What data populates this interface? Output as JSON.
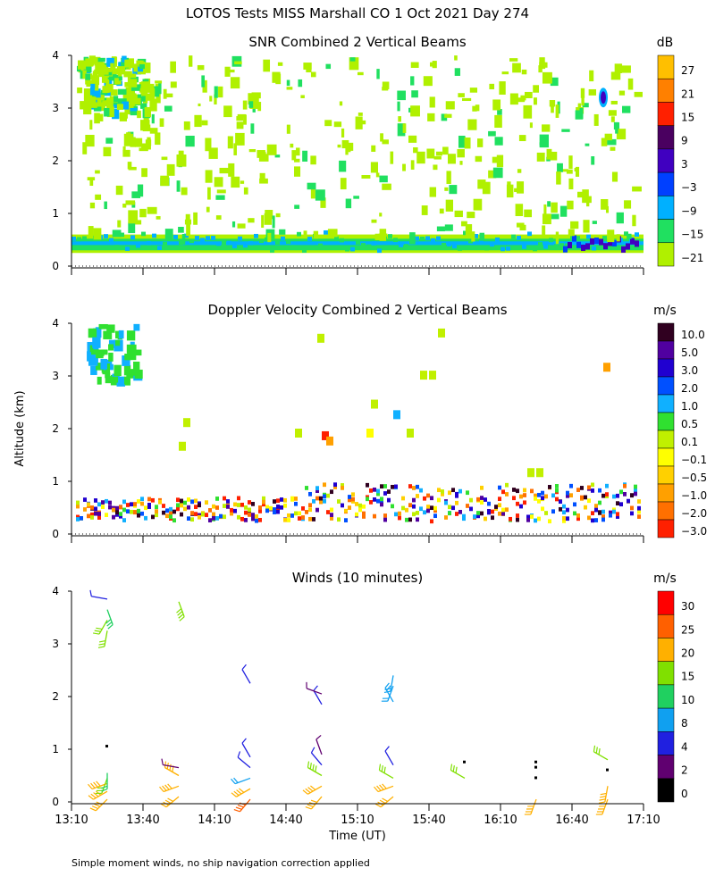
{
  "title": "LOTOS Tests MISS Marshall CO    1 Oct 2021 Day 274",
  "ylabel": "Altitude (km)",
  "xlabel": "Time (UT)",
  "footnote": "Simple moment winds, no ship navigation correction applied",
  "time_ticks": [
    "13:10",
    "13:40",
    "14:10",
    "14:40",
    "15:10",
    "15:40",
    "16:10",
    "16:40",
    "17:10"
  ],
  "alt_ticks": [
    "0",
    "1",
    "2",
    "3",
    "4"
  ],
  "panels": [
    {
      "title": "SNR Combined 2 Vertical Beams",
      "unit": "dB",
      "scale_labels": [
        "27",
        "21",
        "15",
        "9",
        "3",
        "−3",
        "−9",
        "−15",
        "−21"
      ],
      "scale_colors": [
        "#ffbf00",
        "#ff8000",
        "#ff2000",
        "#4a0060",
        "#4000c0",
        "#0040ff",
        "#00b0ff",
        "#20e060",
        "#b0f000"
      ]
    },
    {
      "title": "Doppler Velocity Combined 2 Vertical Beams",
      "unit": "m/s",
      "scale_labels": [
        "10.0",
        "5.0",
        "3.0",
        "2.0",
        "1.0",
        "0.5",
        "0.1",
        "−0.1",
        "−0.5",
        "−1.0",
        "−2.0",
        "−3.0"
      ],
      "scale_colors": [
        "#300020",
        "#5000a0",
        "#2000d0",
        "#0050ff",
        "#10b0ff",
        "#30e030",
        "#c0f000",
        "#ffff00",
        "#ffd000",
        "#ffa000",
        "#ff7000",
        "#ff2000"
      ]
    },
    {
      "title": "Winds (10 minutes)",
      "unit": "m/s",
      "scale_labels": [
        "30",
        "25",
        "20",
        "15",
        "10",
        "8",
        "4",
        "2",
        "0"
      ],
      "scale_colors": [
        "#ff0000",
        "#ff6000",
        "#ffb000",
        "#80e000",
        "#20d060",
        "#10a0f0",
        "#2020e0",
        "#600070",
        "#000000"
      ]
    }
  ],
  "chart_data": [
    {
      "type": "heatmap",
      "title": "SNR Combined 2 Vertical Beams",
      "xlabel": "Time (UT)",
      "ylabel": "Altitude (km)",
      "xlim": [
        "13:10",
        "17:10"
      ],
      "ylim": [
        0,
        4
      ],
      "colorbar_unit": "dB",
      "colorbar_levels": [
        -21,
        -15,
        -9,
        -3,
        3,
        9,
        15,
        21,
        27
      ],
      "features": [
        {
          "description": "strong layer near surface",
          "alt_km": [
            0.25,
            0.6
          ],
          "time": [
            "13:10",
            "17:10"
          ],
          "snr_db": [
            -15,
            -3
          ]
        },
        {
          "description": "enhanced SNR near surface late",
          "alt_km": [
            0.25,
            0.5
          ],
          "time": [
            "16:40",
            "17:05"
          ],
          "snr_db": 3
        },
        {
          "description": "isolated echo",
          "alt_km": 3.2,
          "time": "16:45",
          "snr_db": 3
        },
        {
          "description": "weak scattered echoes",
          "alt_km": [
            0.6,
            4.0
          ],
          "time": [
            "13:10",
            "17:10"
          ],
          "snr_db": -21
        }
      ]
    },
    {
      "type": "heatmap",
      "title": "Doppler Velocity Combined 2 Vertical Beams",
      "xlabel": "Time (UT)",
      "ylabel": "Altitude (km)",
      "xlim": [
        "13:10",
        "17:10"
      ],
      "ylim": [
        0,
        4
      ],
      "colorbar_unit": "m/s",
      "colorbar_levels": [
        -3.0,
        -2.0,
        -1.0,
        -0.5,
        -0.1,
        0.1,
        0.5,
        1.0,
        2.0,
        3.0,
        5.0,
        10.0
      ],
      "features": [
        {
          "description": "noisy mixed velocities near surface",
          "alt_km": [
            0.2,
            0.9
          ],
          "time": [
            "13:15",
            "17:05"
          ]
        },
        {
          "description": "upward 0.5-1.0 m/s region aloft",
          "alt_km": [
            2.9,
            4.0
          ],
          "time": [
            "13:20",
            "13:45"
          ]
        },
        {
          "description": "downward pocket",
          "alt_km": [
            1.7,
            2.0
          ],
          "time": [
            "14:53",
            "14:57"
          ],
          "velocity_ms": -3.0
        },
        {
          "description": "isolated downward echo",
          "alt_km": 3.2,
          "time": "16:45",
          "velocity_ms": -0.5
        }
      ]
    },
    {
      "type": "scatter",
      "title": "Winds (10 minutes)",
      "xlabel": "Time (UT)",
      "ylabel": "Altitude (km)",
      "xlim": [
        "13:10",
        "17:10"
      ],
      "ylim": [
        0,
        4
      ],
      "colorbar_unit": "m/s",
      "colorbar_levels": [
        0,
        2,
        4,
        8,
        10,
        15,
        20,
        25,
        30
      ],
      "barb_groups": [
        {
          "time": "13:25",
          "barbs": [
            {
              "alt": 0.05,
              "speed": 20,
              "dir": 225
            },
            {
              "alt": 0.2,
              "speed": 20,
              "dir": 240
            },
            {
              "alt": 0.35,
              "speed": 22,
              "dir": 250
            },
            {
              "alt": 0.45,
              "speed": 15,
              "dir": 200
            },
            {
              "alt": 0.55,
              "speed": 12,
              "dir": 180
            },
            {
              "alt": 1.05,
              "speed": 0,
              "dir": 270
            },
            {
              "alt": 3.25,
              "speed": 15,
              "dir": 190
            },
            {
              "alt": 3.45,
              "speed": 17,
              "dir": 210
            },
            {
              "alt": 3.65,
              "speed": 13,
              "dir": 160
            },
            {
              "alt": 3.85,
              "speed": 5,
              "dir": 280
            }
          ]
        },
        {
          "time": "13:55",
          "barbs": [
            {
              "alt": 0.1,
              "speed": 22,
              "dir": 230
            },
            {
              "alt": 0.3,
              "speed": 20,
              "dir": 250
            },
            {
              "alt": 0.5,
              "speed": 20,
              "dir": 300
            },
            {
              "alt": 0.65,
              "speed": 3,
              "dir": 280
            },
            {
              "alt": 3.8,
              "speed": 18,
              "dir": 160
            }
          ]
        },
        {
          "time": "14:25",
          "barbs": [
            {
              "alt": 0.05,
              "speed": 25,
              "dir": 220
            },
            {
              "alt": 0.25,
              "speed": 22,
              "dir": 240
            },
            {
              "alt": 0.45,
              "speed": 8,
              "dir": 250
            },
            {
              "alt": 0.65,
              "speed": 5,
              "dir": 310
            },
            {
              "alt": 0.85,
              "speed": 4,
              "dir": 330
            },
            {
              "alt": 2.25,
              "speed": 5,
              "dir": 330
            }
          ]
        },
        {
          "time": "14:55",
          "barbs": [
            {
              "alt": 0.1,
              "speed": 20,
              "dir": 220
            },
            {
              "alt": 0.3,
              "speed": 20,
              "dir": 240
            },
            {
              "alt": 0.5,
              "speed": 18,
              "dir": 300
            },
            {
              "alt": 0.7,
              "speed": 4,
              "dir": 320
            },
            {
              "alt": 0.9,
              "speed": 3,
              "dir": 340
            },
            {
              "alt": 1.85,
              "speed": 4,
              "dir": 330
            },
            {
              "alt": 2.05,
              "speed": 3,
              "dir": 290
            }
          ]
        },
        {
          "time": "15:25",
          "barbs": [
            {
              "alt": 0.1,
              "speed": 20,
              "dir": 230
            },
            {
              "alt": 0.3,
              "speed": 22,
              "dir": 250
            },
            {
              "alt": 0.45,
              "speed": 16,
              "dir": 300
            },
            {
              "alt": 0.7,
              "speed": 4,
              "dir": 330
            },
            {
              "alt": 1.9,
              "speed": 8,
              "dir": 330
            },
            {
              "alt": 2.2,
              "speed": 8,
              "dir": 200
            },
            {
              "alt": 2.4,
              "speed": 8,
              "dir": 190
            }
          ]
        },
        {
          "time": "15:55",
          "barbs": [
            {
              "alt": 0.45,
              "speed": 15,
              "dir": 300
            },
            {
              "alt": 0.75,
              "speed": 0,
              "dir": 0
            }
          ]
        },
        {
          "time": "16:25",
          "barbs": [
            {
              "alt": 0.05,
              "speed": 22,
              "dir": 200
            },
            {
              "alt": 0.45,
              "speed": 0,
              "dir": 260
            },
            {
              "alt": 0.65,
              "speed": 0,
              "dir": 0
            },
            {
              "alt": 0.75,
              "speed": 0,
              "dir": 0
            }
          ]
        },
        {
          "time": "16:55",
          "barbs": [
            {
              "alt": 0.05,
              "speed": 22,
              "dir": 200
            },
            {
              "alt": 0.3,
              "speed": 22,
              "dir": 190
            },
            {
              "alt": 0.6,
              "speed": 0,
              "dir": 270
            },
            {
              "alt": 0.8,
              "speed": 15,
              "dir": 300
            }
          ]
        }
      ]
    }
  ]
}
